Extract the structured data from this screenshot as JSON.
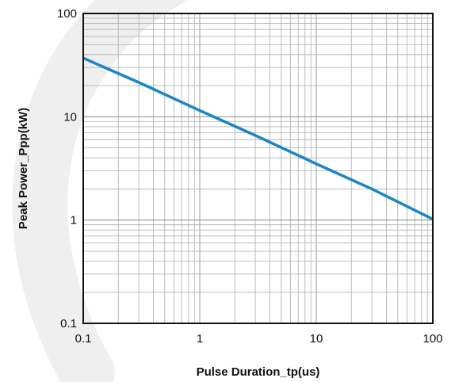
{
  "chart_data": {
    "type": "line",
    "xlabel": "Pulse Duration_tp(us)",
    "ylabel": "Peak Power_Ppp(kW)",
    "x_scale": "log",
    "y_scale": "log",
    "xlim": [
      0.1,
      100
    ],
    "ylim": [
      0.1,
      100
    ],
    "x_ticks": [
      0.1,
      1,
      10,
      100
    ],
    "y_ticks": [
      0.1,
      1,
      10,
      100
    ],
    "x_tick_labels": [
      "0.1",
      "1",
      "10",
      "100"
    ],
    "y_tick_labels": [
      "0.1",
      "1",
      "10",
      "100"
    ],
    "grid": true,
    "series": [
      {
        "color": "#1a86c8",
        "x": [
          0.1,
          0.3,
          1,
          3,
          10,
          30,
          100
        ],
        "y": [
          37,
          21.5,
          11.5,
          6.6,
          3.5,
          2,
          1.02
        ]
      }
    ],
    "colors": {
      "axis": "#111111",
      "major_grid": "#9a9a9a",
      "minor_grid": "#b5b5b5",
      "watermark": "#efefef"
    }
  }
}
